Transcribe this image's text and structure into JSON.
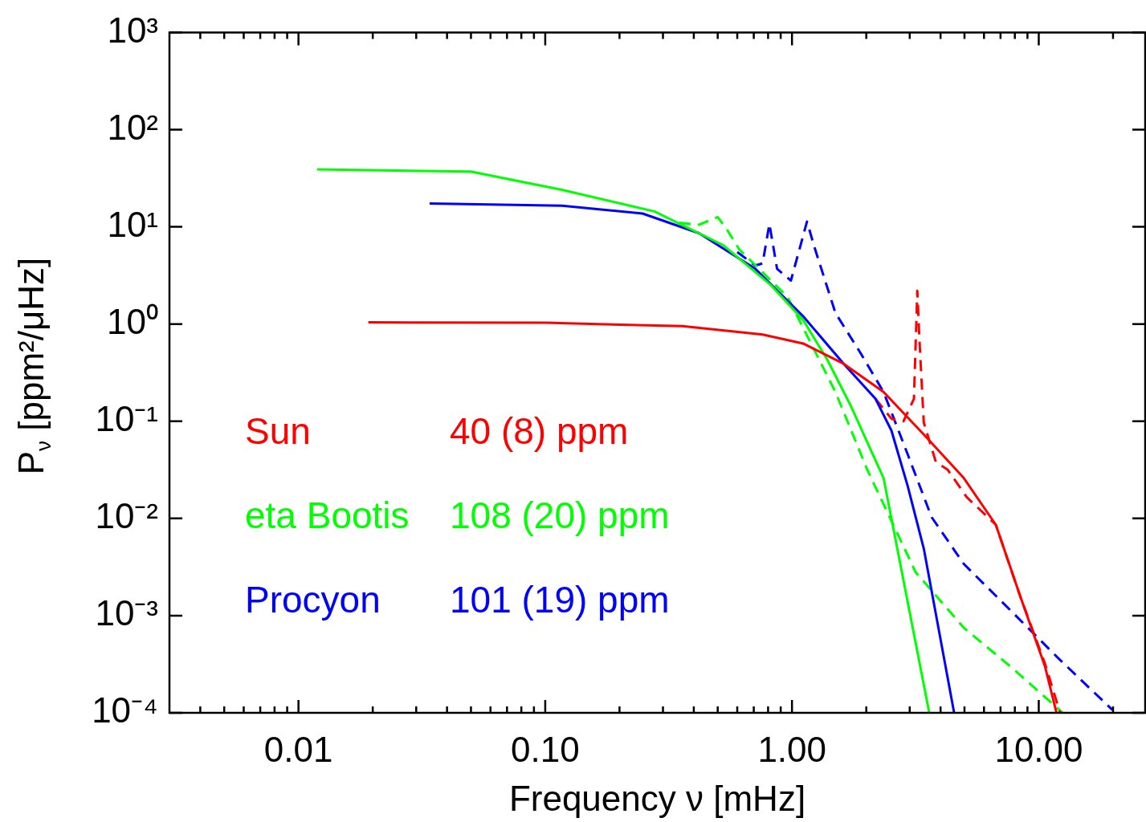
{
  "chart_data": {
    "type": "line",
    "xlabel": "Frequency ν [mHz]",
    "ylabel": "P$_{ν}$ [ppm²/μHz]",
    "log": "xy",
    "legend": "bottom left",
    "marker": "none",
    "xlim": [
      0.003,
      27
    ],
    "ylim": [
      0.0001,
      1000
    ],
    "xticks": [
      {
        "value": 0.004,
        "label": null
      },
      {
        "value": 0.005,
        "label": null
      },
      {
        "value": 0.006,
        "label": null
      },
      {
        "value": 0.007,
        "label": null
      },
      {
        "value": 0.008,
        "label": null
      },
      {
        "value": 0.009,
        "label": null
      },
      {
        "value": 0.01,
        "label": "0.01"
      },
      {
        "value": 0.02,
        "label": null
      },
      {
        "value": 0.03,
        "label": null
      },
      {
        "value": 0.04,
        "label": null
      },
      {
        "value": 0.05,
        "label": null
      },
      {
        "value": 0.06,
        "label": null
      },
      {
        "value": 0.07,
        "label": null
      },
      {
        "value": 0.08,
        "label": null
      },
      {
        "value": 0.09,
        "label": null
      },
      {
        "value": 0.1,
        "label": "0.10"
      },
      {
        "value": 0.2,
        "label": null
      },
      {
        "value": 0.3,
        "label": null
      },
      {
        "value": 0.4,
        "label": null
      },
      {
        "value": 0.5,
        "label": null
      },
      {
        "value": 0.6,
        "label": null
      },
      {
        "value": 0.7,
        "label": null
      },
      {
        "value": 0.8,
        "label": null
      },
      {
        "value": 0.9,
        "label": null
      },
      {
        "value": 1,
        "label": "1.00"
      },
      {
        "value": 2,
        "label": null
      },
      {
        "value": 3,
        "label": null
      },
      {
        "value": 4,
        "label": null
      },
      {
        "value": 5,
        "label": null
      },
      {
        "value": 6,
        "label": null
      },
      {
        "value": 7,
        "label": null
      },
      {
        "value": 8,
        "label": null
      },
      {
        "value": 9,
        "label": null
      },
      {
        "value": 10,
        "label": "10.00"
      },
      {
        "value": 20,
        "label": null
      }
    ],
    "yticks": [
      {
        "value": 0.0001,
        "label": "10⁻⁴"
      },
      {
        "value": 0.001,
        "label": "10⁻³"
      },
      {
        "value": 0.01,
        "label": "10⁻²"
      },
      {
        "value": 0.1,
        "label": "10⁻¹"
      },
      {
        "value": 1,
        "label": "10⁰"
      },
      {
        "value": 10,
        "label": "10¹"
      },
      {
        "value": 100,
        "label": "10²"
      },
      {
        "value": 1000,
        "label": "10³"
      }
    ],
    "annotations": [
      "40 (8) ppm",
      "108 (20) ppm",
      "101 (19) ppm"
    ],
    "series": [
      {
        "name": "Sun",
        "color": "#ff0000",
        "line_style": "solid",
        "x": [
          0.0192,
          0.1,
          0.36,
          0.76,
          1.11,
          1.62,
          2.35,
          3.42,
          4.97,
          6.7,
          8.4,
          10.6,
          11.8
        ],
        "values": [
          1.04,
          1.03,
          0.95,
          0.78,
          0.63,
          0.39,
          0.2,
          0.073,
          0.026,
          0.0086,
          0.0016,
          0.0003,
          0.0001
        ]
      },
      {
        "name": "eta Bootis",
        "color": "#00ff00",
        "line_style": "solid",
        "x": [
          0.0119,
          0.05,
          0.117,
          0.277,
          0.525,
          0.823,
          1.11,
          1.39,
          1.74,
          2.35,
          3.6
        ],
        "values": [
          39,
          37,
          24,
          14.4,
          6.5,
          2.5,
          1.1,
          0.43,
          0.14,
          0.026,
          0.0001
        ]
      },
      {
        "name": "Procyon",
        "color": "#0000ff",
        "line_style": "solid",
        "x": [
          0.034,
          0.117,
          0.248,
          0.42,
          0.71,
          1.11,
          1.62,
          2.18,
          2.53,
          2.94,
          3.42,
          4.54
        ],
        "values": [
          17.4,
          16.5,
          13.7,
          8.6,
          3.7,
          1.2,
          0.39,
          0.17,
          0.08,
          0.0218,
          0.0049,
          0.0001
        ]
      },
      {
        "color": "#ff0000",
        "line_style": "dashed",
        "x": [
          2.18,
          2.53,
          2.83,
          3.12,
          3.22,
          3.29,
          3.42,
          3.83,
          4.28,
          5.1,
          6.7,
          8.4,
          10.6,
          12.2
        ],
        "values": [
          0.17,
          0.106,
          0.1,
          0.17,
          2.2,
          0.63,
          0.097,
          0.038,
          0.0316,
          0.0166,
          0.0086,
          0.0016,
          0.00032,
          0.0001
        ]
      },
      {
        "color": "#00ff00",
        "line_style": "dashed",
        "x": [
          0.35,
          0.42,
          0.5,
          0.545,
          0.61,
          0.96,
          1.5,
          2.02,
          3.17,
          4.97,
          7.8,
          12.5
        ],
        "values": [
          11,
          10.5,
          12.6,
          9.4,
          5.9,
          1.9,
          0.2,
          0.0316,
          0.0028,
          0.00075,
          0.00029,
          0.0001
        ]
      },
      {
        "color": "#0000ff",
        "line_style": "dashed",
        "x": [
          0.6,
          0.71,
          0.76,
          0.81,
          0.87,
          0.99,
          1.15,
          1.24,
          1.5,
          1.88,
          2.35,
          2.94,
          3.68,
          4.97,
          7.8,
          12.2,
          19.9
        ],
        "values": [
          5.5,
          4.0,
          4.2,
          10.7,
          3.7,
          2.8,
          11.3,
          5.9,
          1.3,
          0.52,
          0.2,
          0.046,
          0.0103,
          0.0034,
          0.00109,
          0.00035,
          0.000107
        ]
      }
    ]
  }
}
